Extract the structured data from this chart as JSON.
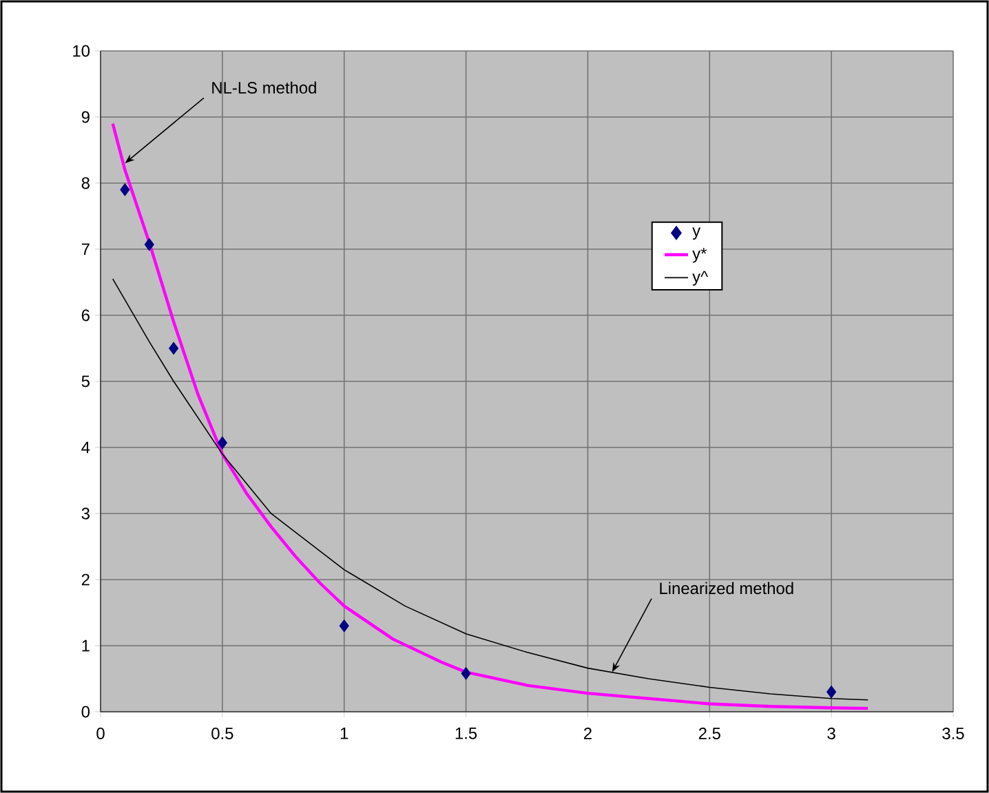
{
  "chart_data": {
    "type": "line",
    "xlim": [
      0,
      3.5
    ],
    "ylim": [
      0,
      10
    ],
    "xticks": [
      0,
      0.5,
      1,
      1.5,
      2,
      2.5,
      3,
      3.5
    ],
    "yticks": [
      0,
      1,
      2,
      3,
      4,
      5,
      6,
      7,
      8,
      9,
      10
    ],
    "grid": true,
    "legend": "right",
    "series": [
      {
        "name": "y",
        "type": "scatter",
        "marker": "diamond",
        "color": "#000080",
        "x": [
          0.1,
          0.2,
          0.3,
          0.5,
          1,
          1.5,
          3
        ],
        "values": [
          7.9,
          7.07,
          5.5,
          4.07,
          1.3,
          0.58,
          0.3
        ]
      },
      {
        "name": "y*",
        "marker": "none",
        "color": "#ff00ff",
        "x": [
          0.05,
          0.1,
          0.2,
          0.3,
          0.4,
          0.5,
          0.6,
          0.7,
          0.8,
          0.9,
          1.0,
          1.2,
          1.4,
          1.5,
          1.75,
          2.0,
          2.25,
          2.5,
          2.75,
          3.0,
          3.15
        ],
        "values": [
          8.9,
          8.2,
          7.1,
          5.9,
          4.8,
          3.9,
          3.3,
          2.8,
          2.35,
          1.95,
          1.6,
          1.1,
          0.75,
          0.6,
          0.4,
          0.28,
          0.2,
          0.12,
          0.08,
          0.06,
          0.05
        ]
      },
      {
        "name": "y^",
        "marker": "none",
        "color": "#000000",
        "x": [
          0.05,
          0.2,
          0.3,
          0.5,
          0.7,
          1.0,
          1.25,
          1.5,
          1.75,
          2.0,
          2.25,
          2.5,
          2.75,
          3.0,
          3.15
        ],
        "values": [
          6.55,
          5.6,
          5.0,
          3.9,
          3.0,
          2.15,
          1.6,
          1.18,
          0.9,
          0.66,
          0.5,
          0.37,
          0.27,
          0.2,
          0.18
        ]
      }
    ],
    "annotations": [
      {
        "text": "NL-LS method",
        "x": 0.1,
        "y": 8.3
      },
      {
        "text": "Linearized method",
        "x": 2.1,
        "y": 0.6
      }
    ]
  }
}
